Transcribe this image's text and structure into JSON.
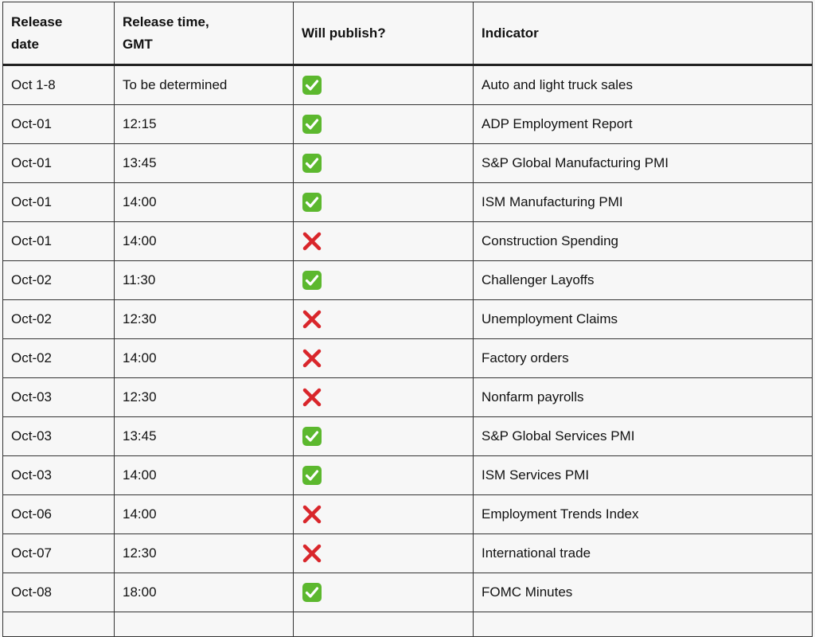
{
  "table": {
    "columns": [
      "Release date",
      "Release time, GMT",
      "Will publish?",
      "Indicator"
    ],
    "rows": [
      {
        "date": "Oct 1-8",
        "time": "To be determined",
        "will_publish": true,
        "indicator": "Auto and light truck sales"
      },
      {
        "date": "Oct-01",
        "time": "12:15",
        "will_publish": true,
        "indicator": "ADP Employment Report"
      },
      {
        "date": "Oct-01",
        "time": "13:45",
        "will_publish": true,
        "indicator": "S&P Global Manufacturing PMI"
      },
      {
        "date": "Oct-01",
        "time": "14:00",
        "will_publish": true,
        "indicator": "ISM Manufacturing PMI"
      },
      {
        "date": "Oct-01",
        "time": "14:00",
        "will_publish": false,
        "indicator": "Construction Spending"
      },
      {
        "date": "Oct-02",
        "time": "11:30",
        "will_publish": true,
        "indicator": "Challenger Layoffs"
      },
      {
        "date": "Oct-02",
        "time": "12:30",
        "will_publish": false,
        "indicator": "Unemployment Claims"
      },
      {
        "date": "Oct-02",
        "time": "14:00",
        "will_publish": false,
        "indicator": "Factory orders"
      },
      {
        "date": "Oct-03",
        "time": "12:30",
        "will_publish": false,
        "indicator": "Nonfarm payrolls"
      },
      {
        "date": "Oct-03",
        "time": "13:45",
        "will_publish": true,
        "indicator": "S&P Global Services PMI"
      },
      {
        "date": "Oct-03",
        "time": "14:00",
        "will_publish": true,
        "indicator": "ISM Services PMI"
      },
      {
        "date": "Oct-06",
        "time": "14:00",
        "will_publish": false,
        "indicator": "Employment Trends Index"
      },
      {
        "date": "Oct-07",
        "time": "12:30",
        "will_publish": false,
        "indicator": "International trade"
      },
      {
        "date": "Oct-08",
        "time": "18:00",
        "will_publish": true,
        "indicator": "FOMC Minutes"
      }
    ]
  }
}
